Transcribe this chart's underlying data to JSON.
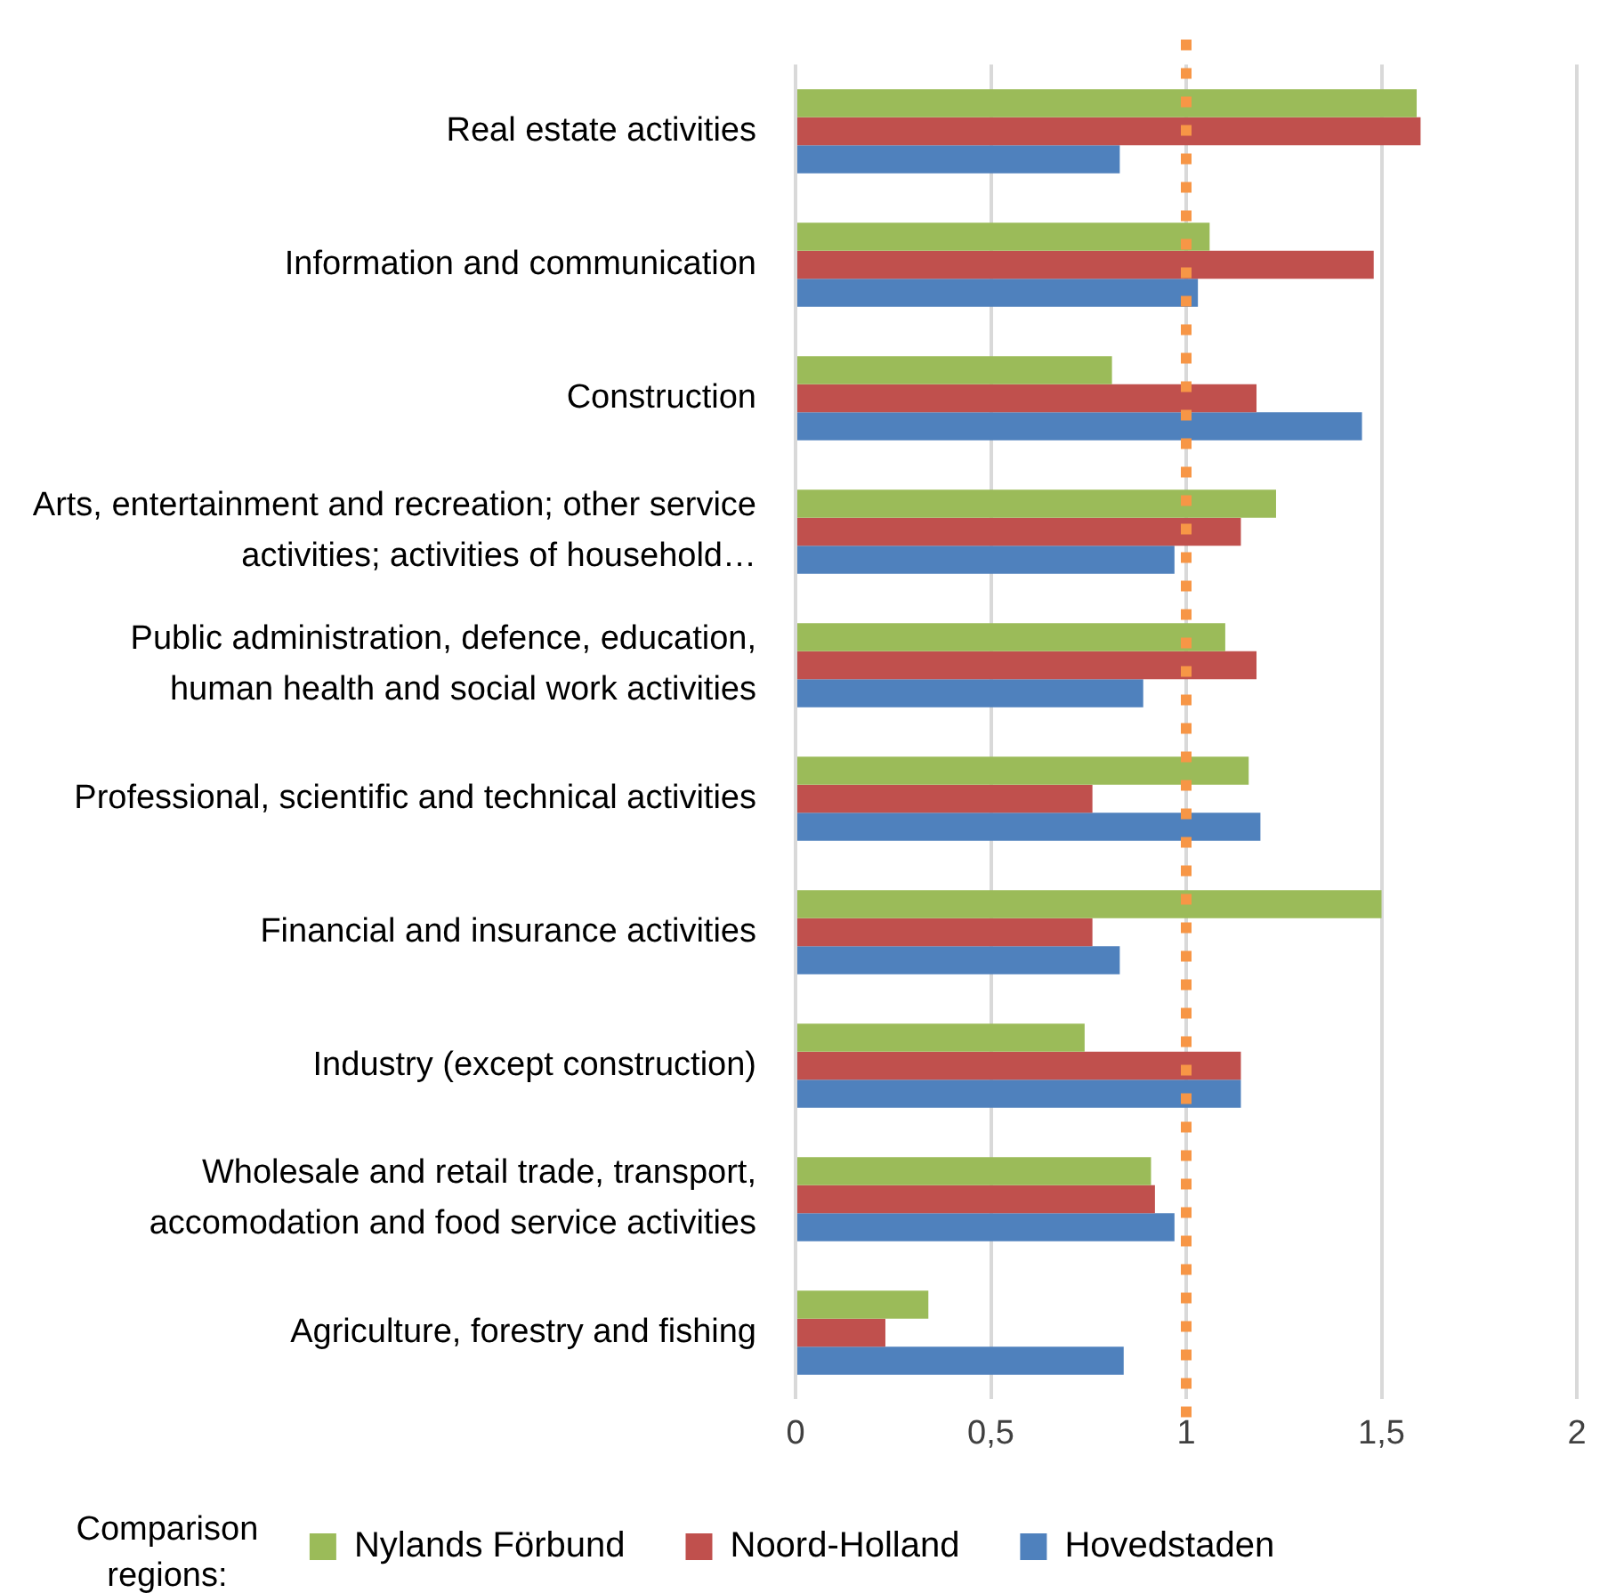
{
  "chart_data": {
    "type": "bar",
    "orientation": "horizontal",
    "categories": [
      "Real estate activities",
      "Information and communication",
      "Construction",
      "Arts, entertainment and recreation; other service activities; activities of household…",
      "Public administration, defence, education, human health and social work activities",
      "Professional, scientific and technical activities",
      "Financial and insurance activities",
      "Industry (except construction)",
      "Wholesale and retail trade, transport, accomodation and food service activities",
      "Agriculture, forestry and fishing"
    ],
    "series": [
      {
        "name": "Nylands Förbund",
        "color": "#9bbb59",
        "values": [
          1.59,
          1.06,
          0.81,
          1.23,
          1.1,
          1.16,
          1.5,
          0.74,
          0.91,
          0.34
        ]
      },
      {
        "name": "Noord-Holland",
        "color": "#c0504d",
        "values": [
          1.6,
          1.48,
          1.18,
          1.14,
          1.18,
          0.76,
          0.76,
          1.14,
          0.92,
          0.23
        ]
      },
      {
        "name": "Hovedstaden",
        "color": "#4f81bd",
        "values": [
          0.83,
          1.03,
          1.45,
          0.97,
          0.89,
          1.19,
          0.83,
          1.14,
          0.97,
          0.84
        ]
      }
    ],
    "xlim": [
      0,
      2
    ],
    "xticks": [
      0,
      {
        "value": 0.5,
        "label": "0,5"
      },
      1,
      {
        "value": 1.5,
        "label": "1,5"
      },
      2
    ],
    "ref_lines": [
      {
        "axis": "x",
        "value": 1,
        "color": "#f79646",
        "line_style": "dotted"
      }
    ],
    "legend_title": "Comparison regions:",
    "legend": "bottom",
    "grid": "x"
  }
}
